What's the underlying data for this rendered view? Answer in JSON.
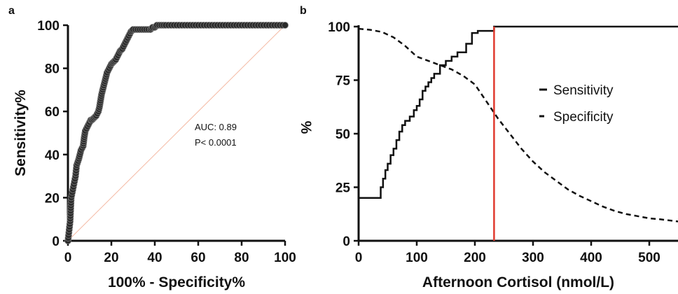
{
  "figure": {
    "panel_a_letter": "a",
    "panel_b_letter": "b"
  },
  "chart_data": [
    {
      "type": "line",
      "panel": "a",
      "title": "",
      "xlabel": "100% - Specificity%",
      "ylabel": "Sensitivity%",
      "xlim": [
        0,
        100
      ],
      "ylim": [
        0,
        100
      ],
      "x_ticks": [
        0,
        20,
        40,
        60,
        80,
        100
      ],
      "y_ticks": [
        0,
        20,
        40,
        60,
        80,
        100
      ],
      "annotations": [
        "AUC: 0.89",
        "P< 0.0001"
      ],
      "reference_line_color": "#f4b9a3",
      "series": [
        {
          "markers": "filled-circle",
          "color": "#111111",
          "x": [
            0,
            1,
            1.5,
            2.5,
            3.5,
            4,
            5,
            5.5,
            6,
            7,
            7.5,
            8,
            9,
            10,
            10.5,
            11,
            12,
            13,
            14,
            14.5,
            15,
            15.5,
            16,
            16.5,
            17,
            17.5,
            18,
            19,
            20,
            21,
            22,
            23,
            24,
            25,
            26,
            27,
            28,
            29,
            30,
            32,
            34,
            36,
            38,
            39,
            40,
            41,
            45,
            50,
            55,
            60,
            65,
            70,
            75,
            80,
            85,
            90,
            95,
            100
          ],
          "y": [
            0,
            9,
            20,
            25,
            30,
            35,
            38,
            40,
            42,
            44,
            48,
            51,
            53,
            55,
            56,
            56,
            57,
            58,
            60,
            62,
            65,
            68,
            70,
            72,
            74,
            76,
            78,
            80,
            82,
            83,
            84,
            86,
            88,
            89,
            91,
            93,
            95,
            97,
            98,
            98,
            98,
            98,
            98,
            99,
            99,
            100,
            100,
            100,
            100,
            100,
            100,
            100,
            100,
            100,
            100,
            100,
            100,
            100
          ]
        }
      ],
      "grid": false
    },
    {
      "type": "line",
      "panel": "b",
      "title": "",
      "xlabel": "Afternoon Cortisol (nmol/L)",
      "ylabel": "%",
      "xlim": [
        0,
        550
      ],
      "ylim": [
        0,
        100
      ],
      "x_ticks": [
        0,
        100,
        200,
        300,
        400,
        500
      ],
      "y_ticks": [
        0,
        25,
        50,
        75,
        100
      ],
      "cutoff_x": 233,
      "cutoff_color": "#e03a2e",
      "legend_position": "right",
      "series": [
        {
          "name": "Sensitivity",
          "style": "solid-step",
          "x": [
            0,
            34,
            38,
            42,
            46,
            50,
            55,
            60,
            65,
            70,
            75,
            80,
            88,
            95,
            100,
            105,
            110,
            115,
            120,
            125,
            130,
            140,
            150,
            160,
            170,
            185,
            195,
            205,
            233,
            550
          ],
          "y": [
            20,
            20,
            25,
            29,
            33,
            36,
            40,
            43,
            47,
            51,
            54,
            56,
            58,
            61,
            63,
            66,
            70,
            72,
            74,
            76,
            78,
            82,
            84,
            86,
            88,
            92,
            97,
            98,
            100,
            100
          ]
        },
        {
          "name": "Specificity",
          "style": "dashed",
          "x": [
            0,
            20,
            40,
            60,
            80,
            100,
            120,
            140,
            160,
            180,
            200,
            220,
            240,
            260,
            280,
            300,
            320,
            340,
            360,
            380,
            400,
            420,
            440,
            460,
            480,
            500,
            520,
            550
          ],
          "y": [
            99,
            98.5,
            97.5,
            95,
            91,
            86,
            84,
            82,
            80,
            77,
            73,
            65,
            57,
            50,
            43,
            37,
            32,
            28,
            24,
            21,
            18.5,
            16,
            14,
            12.5,
            11.5,
            10.5,
            10,
            9
          ]
        }
      ],
      "grid": false
    }
  ]
}
